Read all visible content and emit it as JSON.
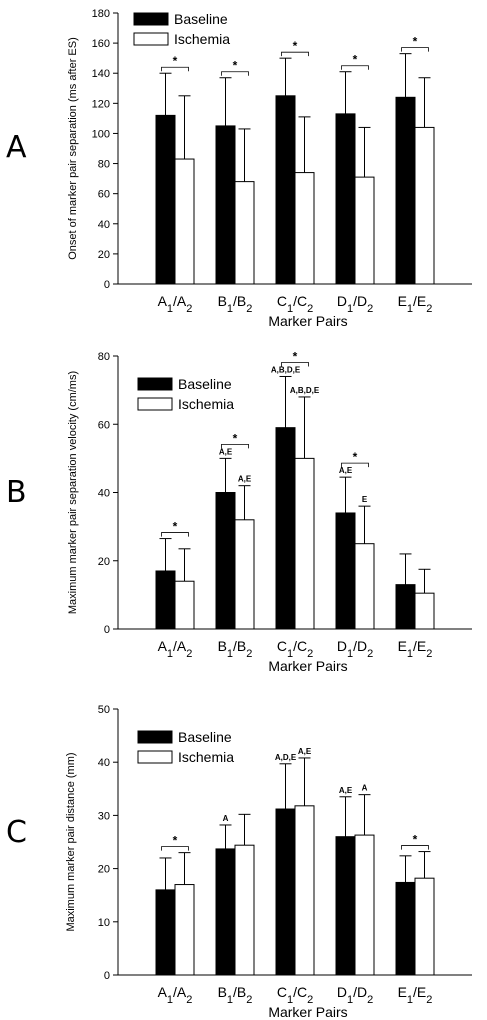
{
  "chart_data": [
    {
      "panel": "A",
      "type": "bar",
      "ylabel": "Onset of marker pair separation (ms after ES)",
      "xlabel": "Marker Pairs",
      "ylim": [
        0,
        180
      ],
      "yticks": [
        0,
        20,
        40,
        60,
        80,
        100,
        120,
        140,
        160,
        180
      ],
      "categories": [
        {
          "main": "A",
          "s1": "1",
          "mid": "/A",
          "s2": "2"
        },
        {
          "main": "B",
          "s1": "1",
          "mid": "/B",
          "s2": "2"
        },
        {
          "main": "C",
          "s1": "1",
          "mid": "/C",
          "s2": "2"
        },
        {
          "main": "D",
          "s1": "1",
          "mid": "/D",
          "s2": "2"
        },
        {
          "main": "E",
          "s1": "1",
          "mid": "/E",
          "s2": "2"
        }
      ],
      "legend_position": "top-left",
      "series": [
        {
          "name": "Baseline",
          "color": "#000000",
          "values": [
            112,
            105,
            125,
            113,
            124
          ],
          "errors": [
            28,
            32,
            25,
            28,
            29
          ]
        },
        {
          "name": "Ischemia",
          "color": "#ffffff",
          "values": [
            83,
            68,
            74,
            71,
            104
          ],
          "errors": [
            42,
            35,
            37,
            33,
            33
          ]
        }
      ],
      "significance": [
        "*",
        "*",
        "*",
        "*",
        "*"
      ],
      "annotations_baseline": [
        "",
        "",
        "",
        "",
        ""
      ],
      "annotations_ischemia": [
        "",
        "",
        "",
        "",
        ""
      ]
    },
    {
      "panel": "B",
      "type": "bar",
      "ylabel": "Maximum marker pair separation velocity (cm/ms)",
      "xlabel": "Marker Pairs",
      "ylim": [
        0,
        80
      ],
      "yticks": [
        0,
        20,
        40,
        60,
        80
      ],
      "categories": [
        {
          "main": "A",
          "s1": "1",
          "mid": "/A",
          "s2": "2"
        },
        {
          "main": "B",
          "s1": "1",
          "mid": "/B",
          "s2": "2"
        },
        {
          "main": "C",
          "s1": "1",
          "mid": "/C",
          "s2": "2"
        },
        {
          "main": "D",
          "s1": "1",
          "mid": "/D",
          "s2": "2"
        },
        {
          "main": "E",
          "s1": "1",
          "mid": "/E",
          "s2": "2"
        }
      ],
      "legend_position": "top-left",
      "series": [
        {
          "name": "Baseline",
          "color": "#000000",
          "values": [
            17,
            40,
            59,
            34,
            13
          ],
          "errors": [
            9.5,
            10,
            15,
            10.5,
            9
          ]
        },
        {
          "name": "Ischemia",
          "color": "#ffffff",
          "values": [
            14,
            32,
            50,
            25,
            10.5
          ],
          "errors": [
            9.5,
            10,
            18,
            11,
            7
          ]
        }
      ],
      "significance": [
        "*",
        "*",
        "*",
        "*",
        ""
      ],
      "annotations_baseline": [
        "",
        "A,E",
        "A,B,D,E",
        "A,E",
        ""
      ],
      "annotations_ischemia": [
        "",
        "A,E",
        "A,B,D,E",
        "E",
        ""
      ]
    },
    {
      "panel": "C",
      "type": "bar",
      "ylabel": "Maximum marker pair distance (mm)",
      "xlabel": "Marker Pairs",
      "ylim": [
        0,
        50
      ],
      "yticks": [
        0,
        10,
        20,
        30,
        40,
        50
      ],
      "categories": [
        {
          "main": "A",
          "s1": "1",
          "mid": "/A",
          "s2": "2"
        },
        {
          "main": "B",
          "s1": "1",
          "mid": "/B",
          "s2": "2"
        },
        {
          "main": "C",
          "s1": "1",
          "mid": "/C",
          "s2": "2"
        },
        {
          "main": "D",
          "s1": "1",
          "mid": "/D",
          "s2": "2"
        },
        {
          "main": "E",
          "s1": "1",
          "mid": "/E",
          "s2": "2"
        }
      ],
      "legend_position": "top-left",
      "series": [
        {
          "name": "Baseline",
          "color": "#000000",
          "values": [
            16,
            23.7,
            31.2,
            26,
            17.4
          ],
          "errors": [
            6,
            4.5,
            8.5,
            7.5,
            5
          ]
        },
        {
          "name": "Ischemia",
          "color": "#ffffff",
          "values": [
            17,
            24.4,
            31.8,
            26.3,
            18.2
          ],
          "errors": [
            6,
            5.8,
            9,
            7.6,
            5
          ]
        }
      ],
      "significance": [
        "*",
        "",
        "",
        "",
        "*"
      ],
      "annotations_baseline": [
        "",
        "A",
        "A,D,E",
        "A,E",
        ""
      ],
      "annotations_ischemia": [
        "",
        "",
        "A,E",
        "A",
        ""
      ]
    }
  ]
}
